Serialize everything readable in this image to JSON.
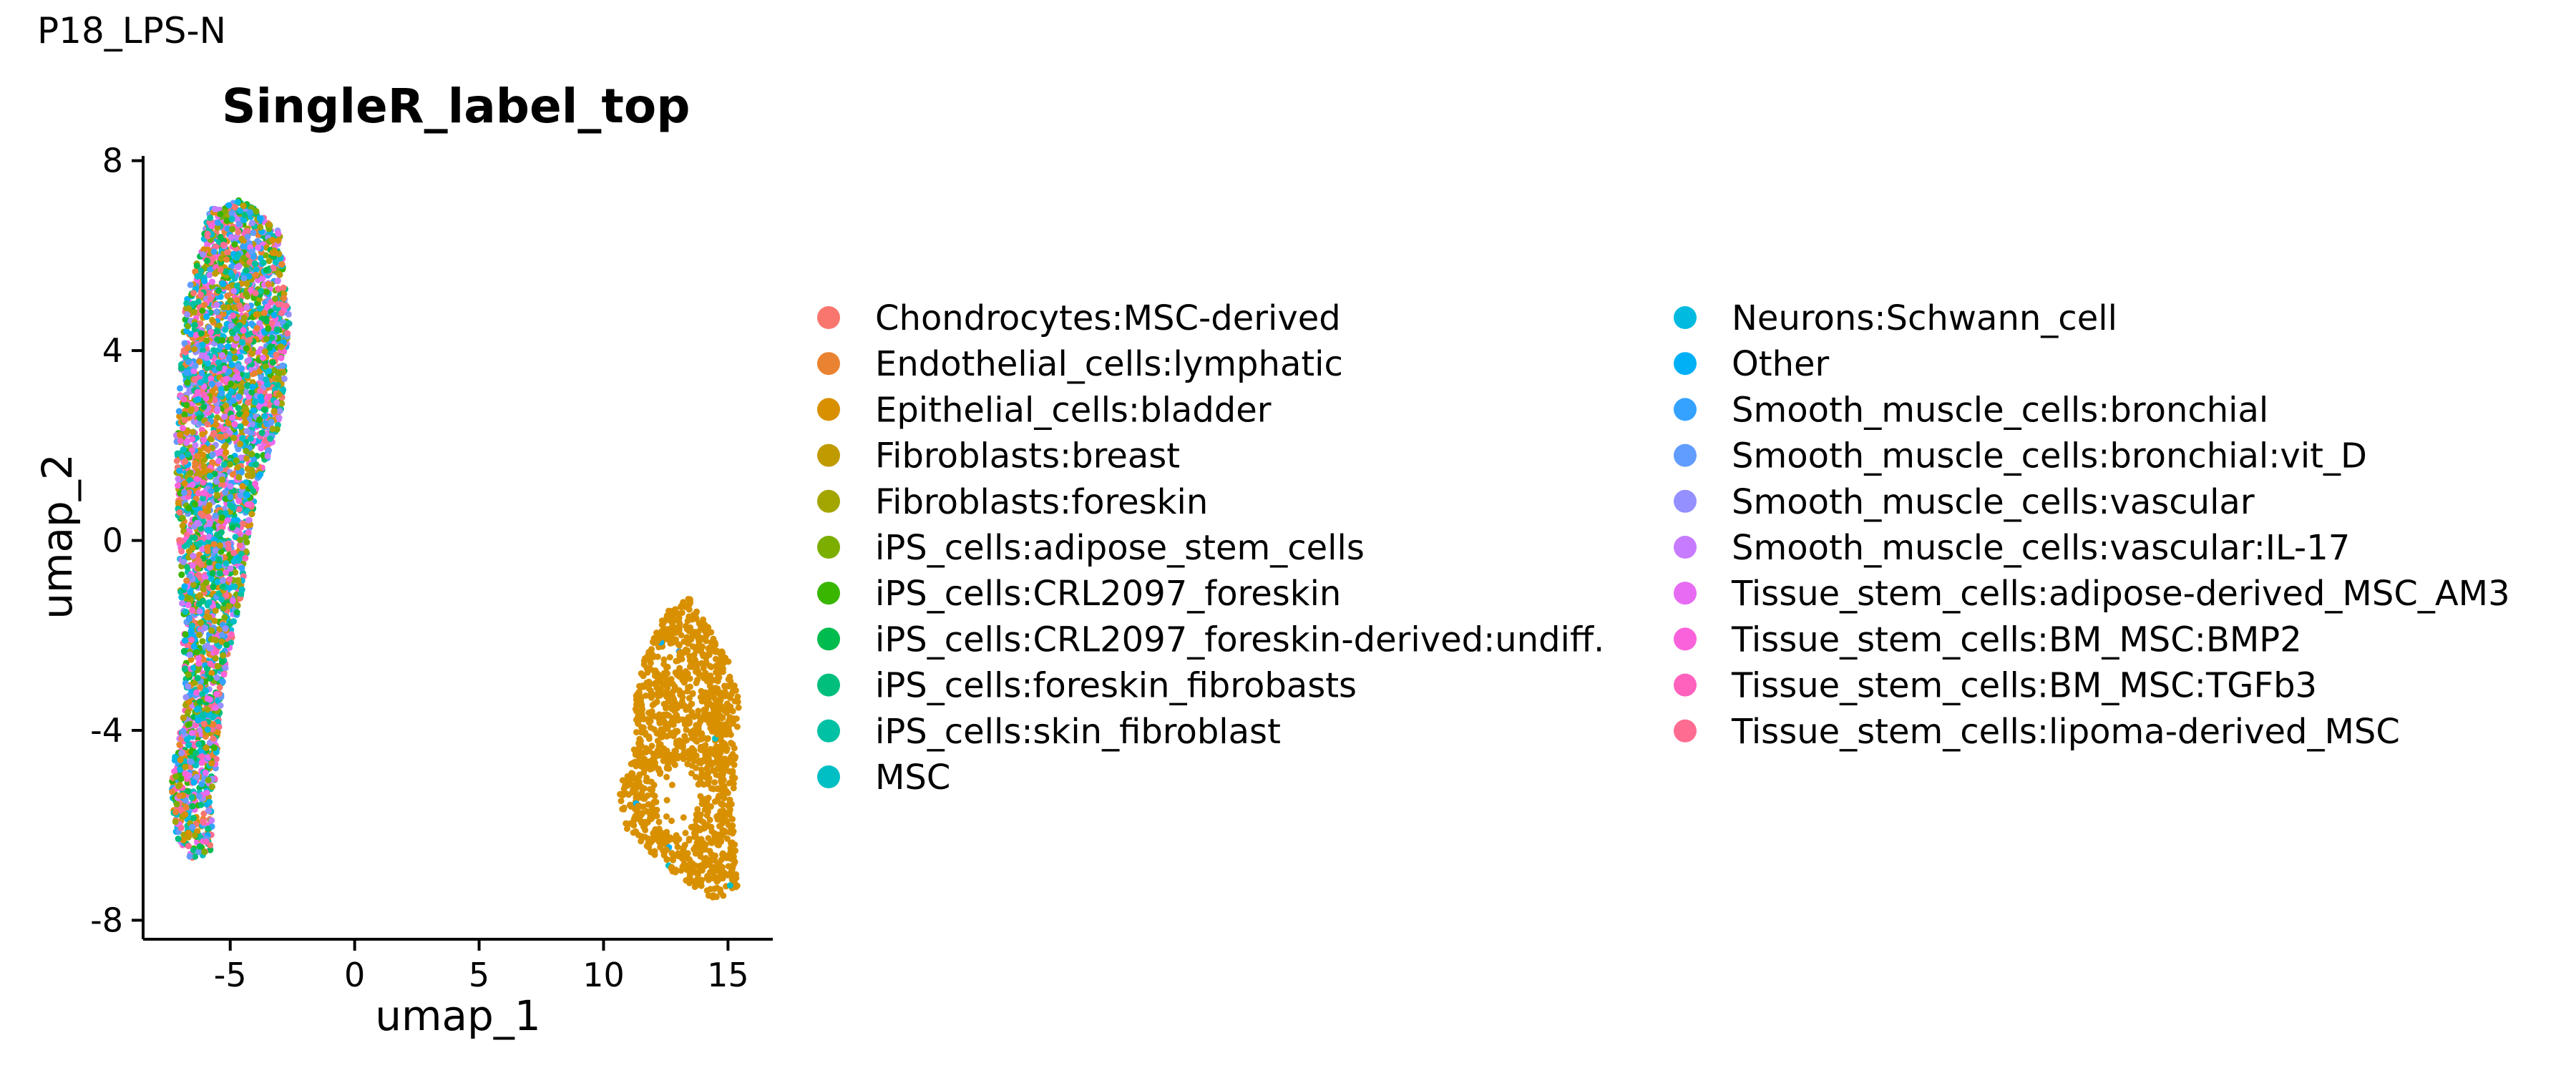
{
  "page": {
    "title": "P18_LPS-N"
  },
  "chart_data": {
    "type": "scatter",
    "title": "SingleR_label_top",
    "xlabel": "umap_1",
    "ylabel": "umap_2",
    "xlim": [
      -8.5,
      16.8
    ],
    "ylim": [
      -8.4,
      8.1
    ],
    "xticks": [
      -5,
      0,
      5,
      10,
      15
    ],
    "yticks": [
      -8,
      -4,
      0,
      4,
      8
    ],
    "legend_position": "right",
    "series": [
      {
        "name": "Chondrocytes:MSC-derived",
        "color": "#F8766D"
      },
      {
        "name": "Endothelial_cells:lymphatic",
        "color": "#EA8331"
      },
      {
        "name": "Epithelial_cells:bladder",
        "color": "#D89000"
      },
      {
        "name": "Fibroblasts:breast",
        "color": "#C09B00"
      },
      {
        "name": "Fibroblasts:foreskin",
        "color": "#A3A500"
      },
      {
        "name": "iPS_cells:adipose_stem_cells",
        "color": "#7CAE00"
      },
      {
        "name": "iPS_cells:CRL2097_foreskin",
        "color": "#39B600"
      },
      {
        "name": "iPS_cells:CRL2097_foreskin-derived:undiff.",
        "color": "#00BB4E"
      },
      {
        "name": "iPS_cells:foreskin_fibrobasts",
        "color": "#00BF7D"
      },
      {
        "name": "iPS_cells:skin_fibroblast",
        "color": "#00C1A3"
      },
      {
        "name": "MSC",
        "color": "#00BFC4"
      },
      {
        "name": "Neurons:Schwann_cell",
        "color": "#00BAE0"
      },
      {
        "name": "Other",
        "color": "#00B0F6"
      },
      {
        "name": "Smooth_muscle_cells:bronchial",
        "color": "#35A2FF"
      },
      {
        "name": "Smooth_muscle_cells:bronchial:vit_D",
        "color": "#619CFF"
      },
      {
        "name": "Smooth_muscle_cells:vascular",
        "color": "#9590FF"
      },
      {
        "name": "Smooth_muscle_cells:vascular:IL-17",
        "color": "#C77CFF"
      },
      {
        "name": "Tissue_stem_cells:adipose-derived_MSC_AM3",
        "color": "#E76BF3"
      },
      {
        "name": "Tissue_stem_cells:BM_MSC:BMP2",
        "color": "#FA62DB"
      },
      {
        "name": "Tissue_stem_cells:BM_MSC:TGFb3",
        "color": "#FF62BC"
      },
      {
        "name": "Tissue_stem_cells:lipoma-derived_MSC",
        "color": "#FF6C91"
      }
    ],
    "clusters": [
      {
        "description_label": "left cluster",
        "outline": [
          [
            -6.6,
            -6.7
          ],
          [
            -5.8,
            -6.6
          ],
          [
            -5.6,
            -5.0
          ],
          [
            -5.3,
            -3.0
          ],
          [
            -4.5,
            -1.0
          ],
          [
            -4.0,
            1.0
          ],
          [
            -3.0,
            2.5
          ],
          [
            -2.6,
            4.5
          ],
          [
            -3.0,
            6.5
          ],
          [
            -4.5,
            7.2
          ],
          [
            -5.8,
            7.0
          ],
          [
            -6.8,
            5.0
          ],
          [
            -7.2,
            2.0
          ],
          [
            -7.0,
            -1.0
          ],
          [
            -6.8,
            -3.5
          ],
          [
            -7.4,
            -5.0
          ],
          [
            -7.2,
            -6.2
          ]
        ],
        "point_count": 4200,
        "mixed": true
      },
      {
        "description_label": "right cluster",
        "outline": [
          [
            12.5,
            -1.5
          ],
          [
            13.5,
            -1.2
          ],
          [
            15.0,
            -2.5
          ],
          [
            15.5,
            -3.5
          ],
          [
            15.2,
            -5.5
          ],
          [
            15.4,
            -7.3
          ],
          [
            14.5,
            -7.6
          ],
          [
            13.3,
            -7.2
          ],
          [
            12.3,
            -6.8
          ],
          [
            10.8,
            -6.0
          ],
          [
            10.6,
            -5.2
          ],
          [
            11.2,
            -4.6
          ],
          [
            11.3,
            -3.2
          ],
          [
            11.7,
            -2.4
          ]
        ],
        "hole": [
          [
            12.0,
            -5.0
          ],
          [
            13.3,
            -4.6
          ],
          [
            13.9,
            -5.5
          ],
          [
            13.2,
            -6.3
          ],
          [
            12.2,
            -5.9
          ]
        ],
        "point_count": 1300,
        "dominant_series": "Epithelial_cells:bladder"
      }
    ]
  }
}
